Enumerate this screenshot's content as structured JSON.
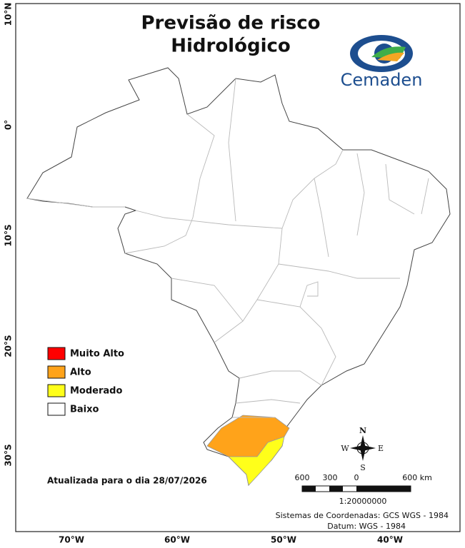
{
  "header": {
    "title_line1": "Previsão de risco",
    "title_line2": "Hidrológico"
  },
  "logo": {
    "text": "Cemaden"
  },
  "legend": {
    "items": [
      {
        "label": "Muito Alto",
        "color": "#ff0000"
      },
      {
        "label": "Alto",
        "color": "#ffa31a"
      },
      {
        "label": "Moderado",
        "color": "#ffff1a"
      },
      {
        "label": "Baixo",
        "color": "#ffffff"
      }
    ]
  },
  "map": {
    "latitude_labels": [
      "10°N",
      "0°",
      "10°S",
      "20°S",
      "30°S"
    ],
    "longitude_labels": [
      "70°W",
      "60°W",
      "50°W",
      "40°W"
    ],
    "compass": {
      "n": "N",
      "s": "S",
      "e": "E",
      "w": "W"
    }
  },
  "scale_bar": {
    "labels": [
      "600",
      "300",
      "0",
      "600 km"
    ],
    "ratio": "1:20000000"
  },
  "footer": {
    "updated": "Atualizada para o dia 28/07/2026",
    "coordinate_system": "Sistemas de Coordenadas: GCS WGS - 1984",
    "datum": "Datum: WGS - 1984"
  }
}
